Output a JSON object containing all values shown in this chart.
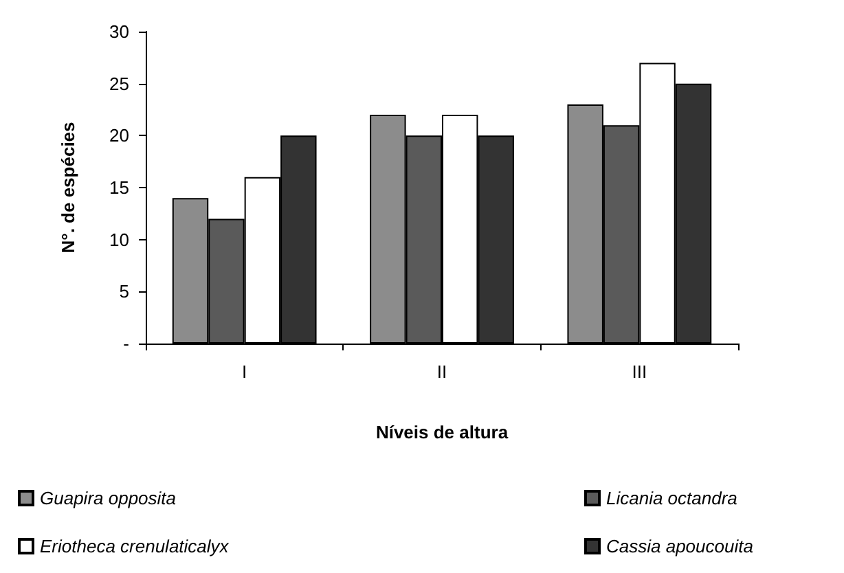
{
  "chart_data": {
    "type": "bar",
    "xlabel": "Níveis de altura",
    "ylabel": "N°. de espécies",
    "categories": [
      "I",
      "II",
      "III"
    ],
    "series": [
      {
        "name": "Guapira opposita",
        "color": "#8c8c8c",
        "values": [
          14,
          22,
          23
        ]
      },
      {
        "name": "Licania octandra",
        "color": "#5a5a5a",
        "values": [
          12,
          20,
          21
        ]
      },
      {
        "name": "Eriotheca crenulaticalyx",
        "color": "#ffffff",
        "values": [
          16,
          22,
          27
        ]
      },
      {
        "name": "Cassia apoucouita",
        "color": "#333333",
        "values": [
          20,
          20,
          25
        ]
      }
    ],
    "ylim": [
      0,
      30
    ],
    "yticks": [
      {
        "value": 0,
        "label": "-"
      },
      5,
      10,
      15,
      20,
      25,
      30
    ],
    "grid": false,
    "legend": "bottom"
  }
}
